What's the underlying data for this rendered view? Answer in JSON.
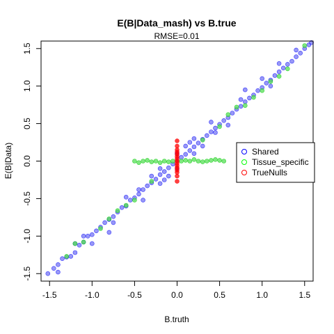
{
  "chart_data": {
    "type": "scatter",
    "title": "E(B|Data_mash) vs B.true",
    "subtitle": "RMSE=0.01",
    "xlabel": "B.truth",
    "ylabel": "E(B|Data)",
    "xlim": [
      -1.6,
      1.6
    ],
    "ylim": [
      -1.6,
      1.6
    ],
    "x_ticks": [
      "-1.5",
      "-1.0",
      "-0.5",
      "0.0",
      "0.5",
      "1.0",
      "1.5"
    ],
    "y_ticks": [
      "-1.5",
      "-1.0",
      "-0.5",
      "0.0",
      "0.5",
      "1.0",
      "1.5"
    ],
    "grid": false,
    "legend": {
      "placement": "right",
      "entries": [
        {
          "name": "Shared",
          "color": "#0000ff"
        },
        {
          "name": "Tissue_specific",
          "color": "#00ff00"
        },
        {
          "name": "TrueNulls",
          "color": "#ff0000"
        }
      ]
    },
    "series": [
      {
        "name": "Shared",
        "color": "#0000ff",
        "fill": "#4444ee",
        "points": [
          [
            -1.52,
            -1.5
          ],
          [
            -1.45,
            -1.43
          ],
          [
            -1.4,
            -1.38
          ],
          [
            -1.35,
            -1.3
          ],
          [
            -1.3,
            -1.28
          ],
          [
            -1.25,
            -1.27
          ],
          [
            -1.2,
            -1.22
          ],
          [
            -1.15,
            -1.12
          ],
          [
            -1.1,
            -1.08
          ],
          [
            -1.05,
            -1.0
          ],
          [
            -1.0,
            -0.98
          ],
          [
            -0.95,
            -0.93
          ],
          [
            -0.9,
            -0.88
          ],
          [
            -0.85,
            -0.82
          ],
          [
            -0.8,
            -0.78
          ],
          [
            -0.75,
            -0.74
          ],
          [
            -0.7,
            -0.68
          ],
          [
            -0.65,
            -0.62
          ],
          [
            -0.6,
            -0.6
          ],
          [
            -0.55,
            -0.52
          ],
          [
            -0.5,
            -0.49
          ],
          [
            -0.45,
            -0.44
          ],
          [
            -0.4,
            -0.38
          ],
          [
            -0.35,
            -0.33
          ],
          [
            -0.3,
            -0.29
          ],
          [
            -0.25,
            -0.24
          ],
          [
            -0.2,
            -0.18
          ],
          [
            -0.15,
            -0.14
          ],
          [
            -0.1,
            -0.09
          ],
          [
            -0.05,
            -0.04
          ],
          [
            0.0,
            0.0
          ],
          [
            0.05,
            0.05
          ],
          [
            0.1,
            0.09
          ],
          [
            0.15,
            0.14
          ],
          [
            0.2,
            0.19
          ],
          [
            0.25,
            0.24
          ],
          [
            0.3,
            0.29
          ],
          [
            0.35,
            0.34
          ],
          [
            0.4,
            0.39
          ],
          [
            0.45,
            0.44
          ],
          [
            0.5,
            0.49
          ],
          [
            0.55,
            0.54
          ],
          [
            0.6,
            0.58
          ],
          [
            0.65,
            0.64
          ],
          [
            0.7,
            0.69
          ],
          [
            0.75,
            0.73
          ],
          [
            0.8,
            0.79
          ],
          [
            0.85,
            0.84
          ],
          [
            0.9,
            0.88
          ],
          [
            0.95,
            0.94
          ],
          [
            1.0,
            0.98
          ],
          [
            1.05,
            1.04
          ],
          [
            1.1,
            1.08
          ],
          [
            1.15,
            1.14
          ],
          [
            1.2,
            1.19
          ],
          [
            1.25,
            1.24
          ],
          [
            1.3,
            1.29
          ],
          [
            1.35,
            1.33
          ],
          [
            1.4,
            1.39
          ],
          [
            1.45,
            1.44
          ],
          [
            1.5,
            1.5
          ],
          [
            1.55,
            1.55
          ],
          [
            1.58,
            1.58
          ],
          [
            -1.0,
            -1.1
          ],
          [
            -0.8,
            -0.95
          ],
          [
            -0.6,
            -0.48
          ],
          [
            -0.4,
            -0.52
          ],
          [
            -0.2,
            -0.3
          ],
          [
            0.2,
            0.3
          ],
          [
            0.4,
            0.52
          ],
          [
            0.6,
            0.48
          ],
          [
            0.8,
            0.95
          ],
          [
            1.0,
            1.1
          ],
          [
            -1.2,
            -1.1
          ],
          [
            1.2,
            1.3
          ],
          [
            -0.3,
            -0.2
          ],
          [
            0.3,
            0.2
          ],
          [
            -0.1,
            -0.2
          ],
          [
            0.1,
            0.2
          ],
          [
            0.0,
            0.1
          ],
          [
            0.0,
            -0.1
          ],
          [
            0.2,
            0.1
          ],
          [
            -0.2,
            -0.1
          ],
          [
            0.15,
            0.25
          ],
          [
            -0.15,
            -0.25
          ],
          [
            0.45,
            0.38
          ],
          [
            -0.45,
            -0.38
          ],
          [
            0.75,
            0.82
          ],
          [
            -0.75,
            -0.82
          ],
          [
            1.1,
            1.0
          ],
          [
            -1.1,
            -1.0
          ],
          [
            1.4,
            1.48
          ],
          [
            -1.4,
            -1.48
          ]
        ]
      },
      {
        "name": "Tissue_specific",
        "color": "#00cc00",
        "fill": "#55dd55",
        "points": [
          [
            -0.5,
            0.0
          ],
          [
            -0.45,
            -0.02
          ],
          [
            -0.4,
            0.0
          ],
          [
            -0.35,
            0.01
          ],
          [
            -0.3,
            -0.01
          ],
          [
            -0.25,
            0.0
          ],
          [
            -0.2,
            -0.02
          ],
          [
            -0.15,
            0.0
          ],
          [
            -0.1,
            -0.01
          ],
          [
            -0.05,
            0.0
          ],
          [
            0.05,
            0.0
          ],
          [
            0.1,
            0.01
          ],
          [
            0.15,
            0.0
          ],
          [
            0.2,
            0.02
          ],
          [
            0.25,
            0.0
          ],
          [
            0.3,
            -0.01
          ],
          [
            0.35,
            0.0
          ],
          [
            0.4,
            0.01
          ],
          [
            0.45,
            0.02
          ],
          [
            0.5,
            0.01
          ],
          [
            0.55,
            0.0
          ],
          [
            -1.3,
            -1.27
          ],
          [
            -1.1,
            -1.08
          ],
          [
            -0.9,
            -0.9
          ],
          [
            -0.7,
            -0.66
          ],
          [
            -0.5,
            -0.52
          ],
          [
            -0.3,
            -0.27
          ],
          [
            0.3,
            0.28
          ],
          [
            0.5,
            0.46
          ],
          [
            0.7,
            0.72
          ],
          [
            0.9,
            0.85
          ],
          [
            1.1,
            1.06
          ],
          [
            1.3,
            1.23
          ],
          [
            1.5,
            1.54
          ],
          [
            -1.2,
            -1.1
          ],
          [
            1.2,
            1.13
          ],
          [
            0.6,
            0.62
          ],
          [
            -0.6,
            -0.59
          ],
          [
            0.8,
            0.74
          ],
          [
            -0.8,
            -0.77
          ],
          [
            1.0,
            0.94
          ]
        ]
      },
      {
        "name": "TrueNulls",
        "color": "#ff0000",
        "fill": "#ff0000",
        "points": [
          [
            0.0,
            -0.27
          ],
          [
            0.0,
            -0.2
          ],
          [
            0.0,
            -0.15
          ],
          [
            0.0,
            -0.12
          ],
          [
            0.0,
            -0.09
          ],
          [
            0.0,
            -0.06
          ],
          [
            0.0,
            -0.03
          ],
          [
            0.0,
            0.0
          ],
          [
            0.0,
            0.03
          ],
          [
            0.0,
            0.06
          ],
          [
            0.0,
            0.09
          ],
          [
            0.0,
            0.12
          ],
          [
            0.0,
            0.15
          ],
          [
            0.0,
            0.2
          ],
          [
            0.0,
            0.27
          ]
        ]
      }
    ]
  }
}
